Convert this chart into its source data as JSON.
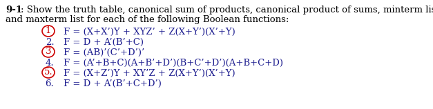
{
  "title_bold": "9-1",
  "title_colon": ": Show the truth table, canonical sum of products, canonical product of sums, minterm list,",
  "title_line2": "and maxterm list for each of the following Boolean functions:",
  "lines": [
    {
      "number": "1",
      "circled": true,
      "formula": "F = (X+X’)Y + XYZ’ + Z(X+Y’)(X’+Y)"
    },
    {
      "number": "2.",
      "circled": false,
      "formula": "F = D + A’(B’+C)"
    },
    {
      "number": "3",
      "circled": true,
      "formula": "F = (AB)’(C’+D’)’"
    },
    {
      "number": "4.",
      "circled": false,
      "formula": "F = (A’+B+C)(A+B’+D’)(B+C’+D’)(A+B+C+D)"
    },
    {
      "number": "5.",
      "circled": true,
      "formula": "F = (X+Z’)Y + XY’Z + Z(X+Y’)(X’+Y)"
    },
    {
      "number": "6.",
      "circled": false,
      "formula": "F = D + A’(B’+C+D’)"
    }
  ],
  "text_color": "#1c1c8f",
  "circle_color": "#cc0000",
  "header_color": "#000000",
  "font_size": 9.5,
  "header_font_size": 9.5,
  "fig_width": 6.27,
  "fig_height": 1.58,
  "dpi": 100
}
